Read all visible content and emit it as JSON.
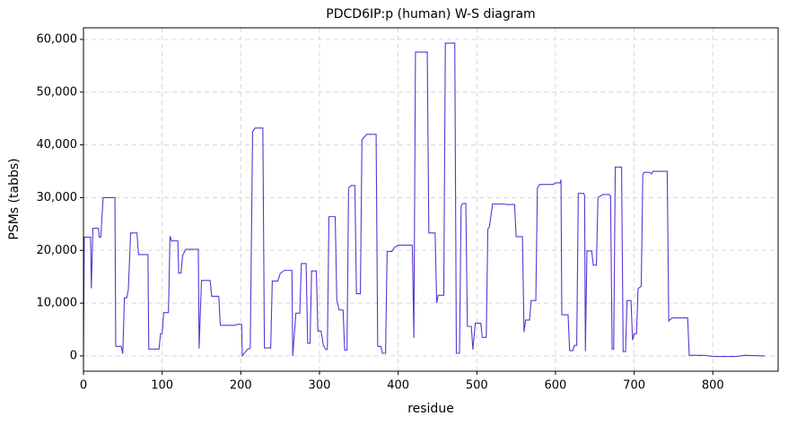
{
  "chart_data": {
    "type": "line",
    "title": "PDCD6IP:p (human) W-S diagram",
    "x_label": "residue",
    "y_label": "PSMs (tabbs)",
    "color": "#5b35d5",
    "grid": true,
    "xlim": [
      0,
      883
    ],
    "ylim": [
      -2900,
      62200
    ],
    "xticks": [
      0,
      100,
      200,
      300,
      400,
      500,
      600,
      700,
      800
    ],
    "yticks": [
      0,
      {
        "value": 10000,
        "label": "10,000"
      },
      {
        "value": 20000,
        "label": "20,000"
      },
      {
        "value": 30000,
        "label": "30,000"
      },
      {
        "value": 40000,
        "label": "40,000"
      },
      {
        "value": 50000,
        "label": "50,000"
      },
      {
        "value": 60000,
        "label": "60,000"
      }
    ],
    "x": [
      0,
      1,
      9,
      10,
      12,
      19,
      20,
      22,
      25,
      40,
      41,
      48,
      50,
      52,
      55,
      57,
      60,
      68,
      70,
      82,
      83,
      96,
      98,
      100,
      102,
      108,
      110,
      112,
      120,
      121,
      124,
      126,
      130,
      146,
      147,
      150,
      161,
      163,
      172,
      174,
      192,
      196,
      201,
      202,
      208,
      212,
      215,
      218,
      228,
      230,
      238,
      240,
      247,
      250,
      255,
      265,
      266,
      270,
      275,
      277,
      283,
      285,
      288,
      290,
      296,
      298,
      302,
      305,
      308,
      310,
      312,
      320,
      322,
      325,
      330,
      332,
      335,
      337,
      340,
      345,
      347,
      352,
      354,
      360,
      372,
      374,
      378,
      380,
      384,
      386,
      392,
      395,
      400,
      418,
      420,
      422,
      437,
      439,
      447,
      449,
      451,
      458,
      460,
      472,
      474,
      478,
      480,
      482,
      486,
      488,
      493,
      495,
      498,
      505,
      507,
      512,
      514,
      516,
      520,
      535,
      537,
      548,
      550,
      558,
      560,
      562,
      567,
      569,
      575,
      577,
      580,
      597,
      600,
      606,
      607,
      608,
      616,
      618,
      622,
      624,
      627,
      629,
      636,
      637,
      638,
      640,
      646,
      648,
      652,
      654,
      660,
      668,
      670,
      672,
      674,
      676,
      684,
      686,
      689,
      691,
      696,
      698,
      700,
      703,
      705,
      709,
      711,
      713,
      720,
      722,
      724,
      742,
      744,
      748,
      768,
      770,
      790,
      800,
      830,
      840,
      866
    ],
    "values": [
      0,
      22500,
      22500,
      12800,
      24200,
      24200,
      22500,
      22500,
      30000,
      30000,
      1800,
      1800,
      400,
      11000,
      11000,
      12500,
      23300,
      23300,
      19200,
      19200,
      1300,
      1300,
      4200,
      4200,
      8200,
      8200,
      22700,
      21800,
      21800,
      15700,
      15700,
      19000,
      20200,
      20200,
      1400,
      14300,
      14300,
      11300,
      11300,
      5800,
      5800,
      6000,
      6000,
      0,
      1200,
      1500,
      42500,
      43200,
      43200,
      1500,
      1500,
      14200,
      14200,
      15600,
      16200,
      16200,
      0,
      8100,
      8100,
      17500,
      17500,
      2400,
      2400,
      16100,
      16100,
      4700,
      4700,
      2000,
      1200,
      1200,
      26400,
      26400,
      10600,
      8700,
      8700,
      1100,
      1100,
      31800,
      32300,
      32300,
      11800,
      11800,
      41000,
      42000,
      42000,
      1800,
      1800,
      500,
      500,
      19800,
      19800,
      20500,
      21000,
      21000,
      3400,
      57600,
      57600,
      23300,
      23300,
      10000,
      11500,
      11500,
      59300,
      59300,
      500,
      500,
      28300,
      28900,
      28900,
      5600,
      5600,
      1200,
      6200,
      6200,
      3500,
      3500,
      24000,
      24500,
      28800,
      28800,
      28700,
      28700,
      22600,
      22600,
      4500,
      6800,
      6800,
      10500,
      10500,
      31800,
      32500,
      32500,
      32800,
      32800,
      33400,
      7800,
      7800,
      1000,
      1000,
      2000,
      2000,
      30800,
      30800,
      30400,
      900,
      19900,
      19900,
      17200,
      17200,
      30000,
      30600,
      30600,
      30300,
      1300,
      1300,
      35800,
      35800,
      800,
      800,
      10500,
      10500,
      3000,
      4200,
      4200,
      12800,
      13200,
      34400,
      34800,
      34800,
      34500,
      35000,
      35000,
      6600,
      7200,
      7200,
      100,
      100,
      -100,
      -100,
      100,
      0
    ]
  }
}
